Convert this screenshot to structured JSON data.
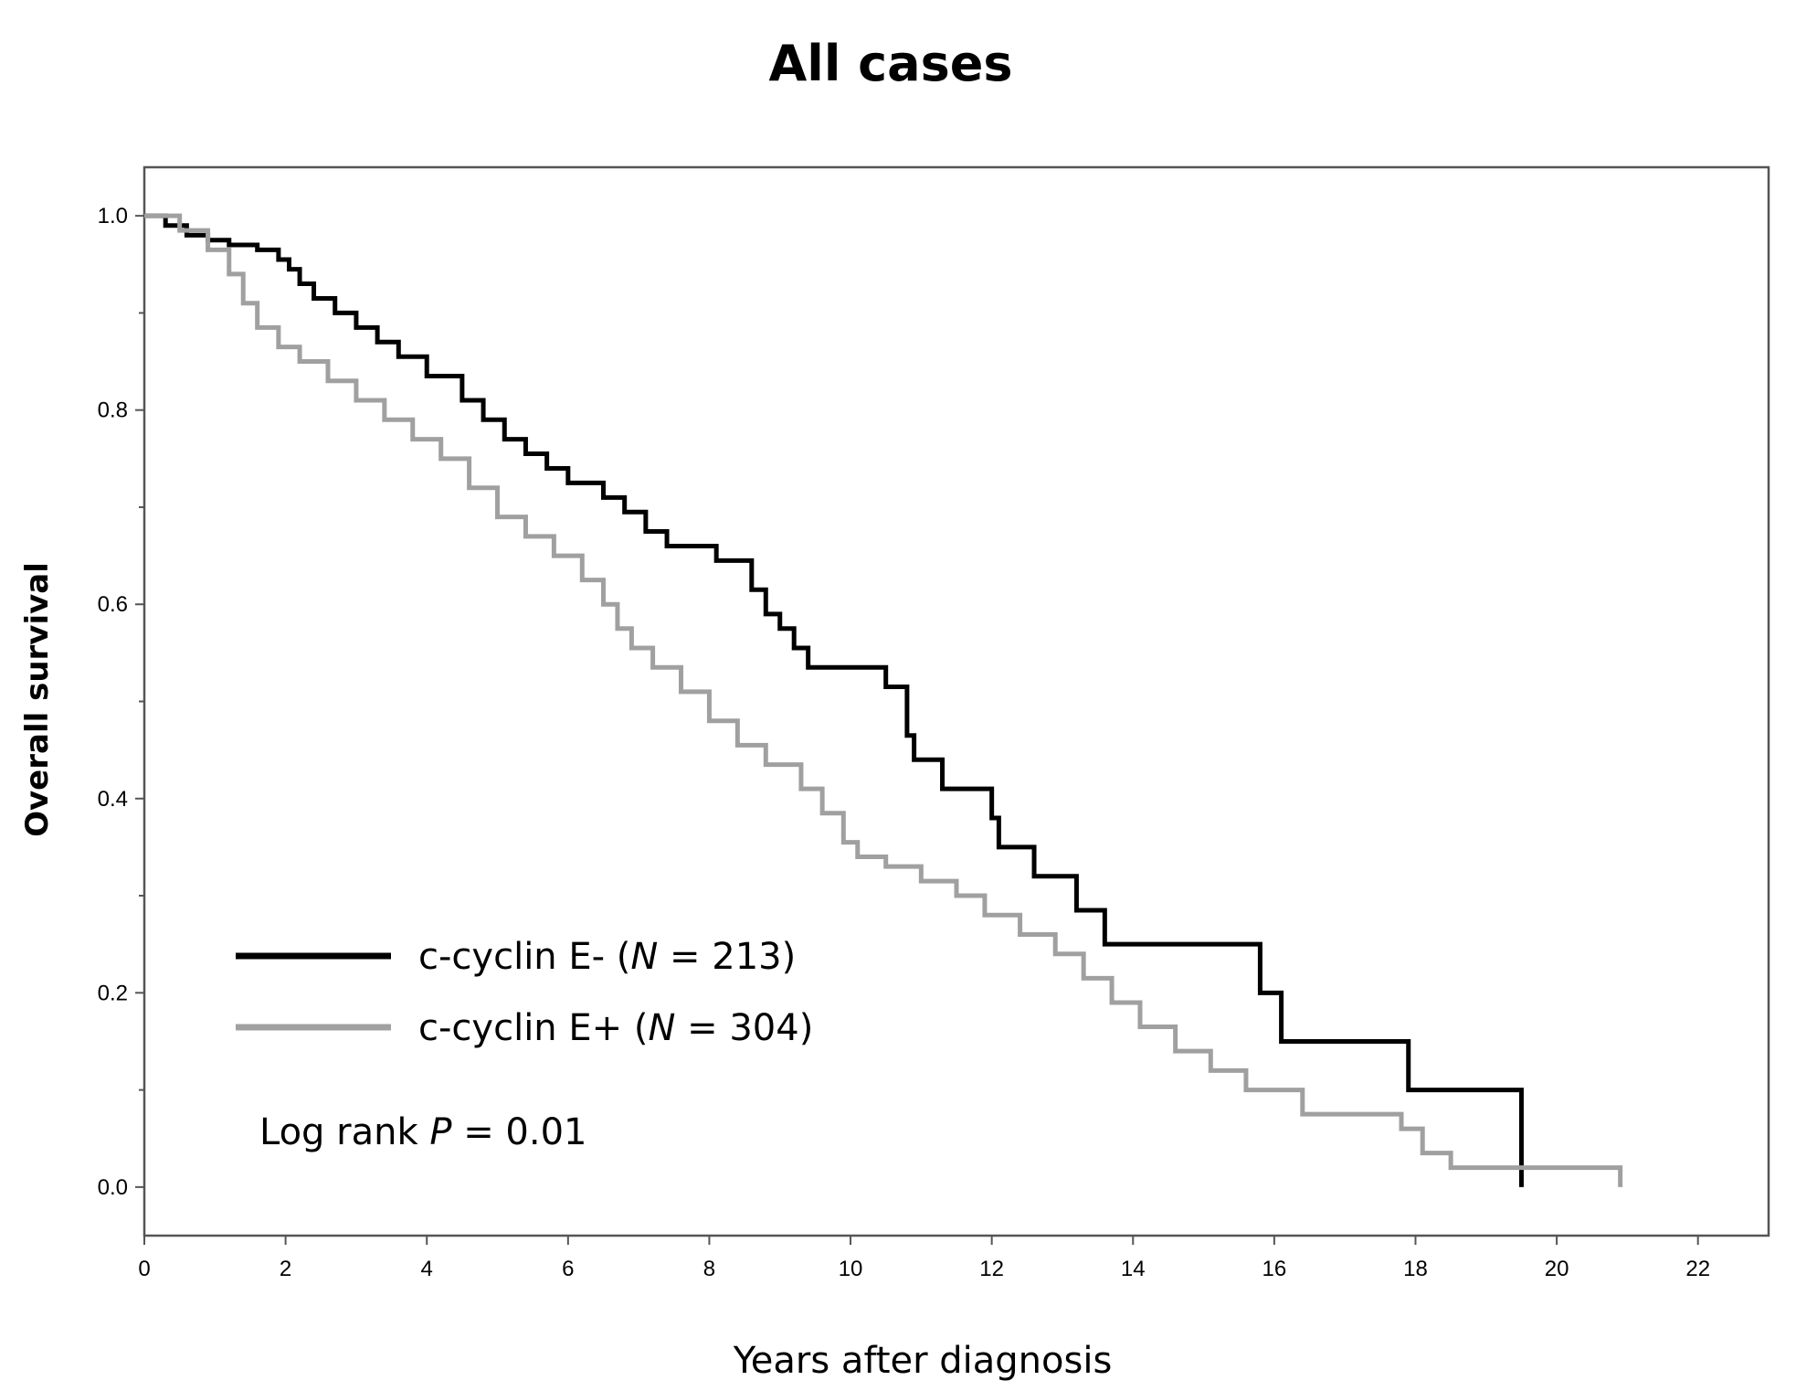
{
  "chart_data": {
    "type": "line",
    "subtype": "kaplan-meier step",
    "title": "All cases",
    "xlabel": "Years after diagnosis",
    "ylabel": "Overall survival",
    "xlim": [
      0,
      23
    ],
    "ylim": [
      -0.05,
      1.05
    ],
    "xticks": [
      0,
      2,
      4,
      6,
      8,
      10,
      12,
      14,
      16,
      18,
      20,
      22
    ],
    "yticks": [
      0.0,
      0.2,
      0.4,
      0.6,
      0.8,
      1.0
    ],
    "ytick_labels": [
      "0.0",
      "0.2",
      "0.4",
      "0.6",
      "0.8",
      "1.0"
    ],
    "legend_position": "lower-left",
    "annotation": {
      "prefix": "Log rank ",
      "italic": "P",
      "suffix": " = 0.01"
    },
    "series": [
      {
        "name": "c-cyclin E- (N = 213)",
        "label_prefix": "c-cyclin E- (",
        "label_italic": "N",
        "label_suffix": " = 213)",
        "color": "#000000",
        "x": [
          0,
          0.3,
          0.6,
          0.9,
          1.2,
          1.6,
          1.9,
          2.05,
          2.2,
          2.4,
          2.7,
          3.0,
          3.3,
          3.6,
          4.0,
          4.5,
          4.8,
          5.1,
          5.4,
          5.7,
          6.0,
          6.5,
          6.8,
          7.1,
          7.4,
          8.1,
          8.6,
          8.8,
          9.0,
          9.2,
          9.4,
          10.5,
          10.8,
          10.9,
          11.3,
          12.0,
          12.1,
          12.6,
          13.2,
          13.6,
          15.8,
          16.0,
          16.1,
          17.9,
          18.0,
          19.5
        ],
        "y": [
          1.0,
          0.99,
          0.98,
          0.975,
          0.97,
          0.965,
          0.955,
          0.945,
          0.93,
          0.915,
          0.9,
          0.885,
          0.87,
          0.855,
          0.835,
          0.81,
          0.79,
          0.77,
          0.755,
          0.74,
          0.725,
          0.71,
          0.695,
          0.675,
          0.66,
          0.645,
          0.615,
          0.59,
          0.575,
          0.555,
          0.535,
          0.515,
          0.465,
          0.44,
          0.41,
          0.38,
          0.35,
          0.32,
          0.285,
          0.25,
          0.2,
          0.2,
          0.15,
          0.1,
          0.1,
          0.0
        ]
      },
      {
        "name": "c-cyclin E+ (N = 304)",
        "label_prefix": "c-cyclin E+ (",
        "label_italic": "N",
        "label_suffix": " = 304)",
        "color": "#a0a0a0",
        "x": [
          0,
          0.5,
          0.9,
          1.2,
          1.4,
          1.6,
          1.9,
          2.2,
          2.6,
          3.0,
          3.4,
          3.8,
          4.2,
          4.6,
          5.0,
          5.4,
          5.8,
          6.2,
          6.5,
          6.7,
          6.9,
          7.2,
          7.6,
          8.0,
          8.4,
          8.8,
          9.3,
          9.6,
          9.9,
          10.1,
          10.5,
          11.0,
          11.5,
          11.9,
          12.4,
          12.9,
          13.3,
          13.7,
          14.1,
          14.6,
          15.1,
          15.6,
          16.4,
          17.8,
          18.1,
          18.5,
          20.9
        ],
        "y": [
          1.0,
          0.985,
          0.965,
          0.94,
          0.91,
          0.885,
          0.865,
          0.85,
          0.83,
          0.81,
          0.79,
          0.77,
          0.75,
          0.72,
          0.69,
          0.67,
          0.65,
          0.625,
          0.6,
          0.575,
          0.555,
          0.535,
          0.51,
          0.48,
          0.455,
          0.435,
          0.41,
          0.385,
          0.355,
          0.34,
          0.33,
          0.315,
          0.3,
          0.28,
          0.26,
          0.24,
          0.215,
          0.19,
          0.165,
          0.14,
          0.12,
          0.1,
          0.075,
          0.06,
          0.035,
          0.02,
          0.0
        ]
      }
    ]
  }
}
